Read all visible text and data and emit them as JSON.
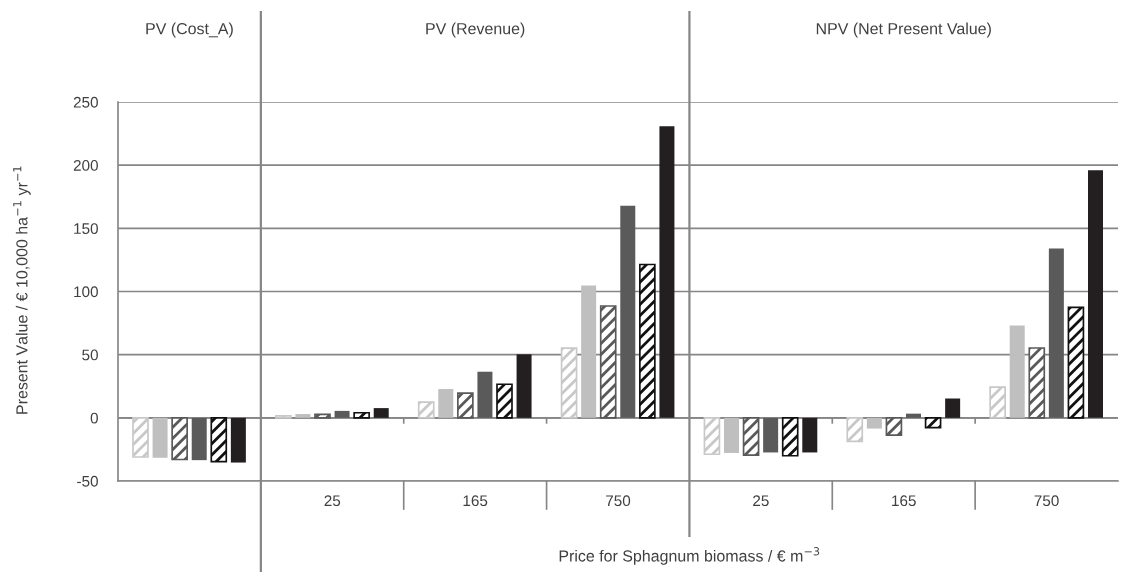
{
  "chart_data": {
    "type": "bar",
    "categories": [
      null,
      "25",
      "165",
      "750",
      "25",
      "165",
      "750"
    ],
    "xlabel": "Price for Sphagnum biomass / € m$^{−3}$",
    "ylabel": "Present Value / € 10,000 ha$^{−1}$ yr$^{−1}$",
    "annotations": [
      "PV (Cost_A)",
      "PV (Revenue)",
      "NPV (Net Present Value)"
    ],
    "ylim": [
      -50,
      250
    ],
    "yticks": [
      -50,
      0,
      50,
      100,
      150,
      200,
      250
    ],
    "grid": "y",
    "series": [
      {
        "color": "#c8c8c8",
        "values": [
          -31,
          1.6,
          12.4,
          55.2,
          -28.8,
          -18.6,
          24.3
        ]
      },
      {
        "color": "#bfbfbf",
        "values": [
          -31.6,
          3,
          22.8,
          104.7,
          -27.8,
          -8.5,
          73
        ]
      },
      {
        "color": "#595959",
        "values": [
          -33,
          2.7,
          19.5,
          88.5,
          -29.5,
          -13.7,
          55.3
        ]
      },
      {
        "color": "#5a5a5a",
        "values": [
          -33.5,
          5.5,
          36.5,
          167.9,
          -27.4,
          3.3,
          134.1
        ]
      },
      {
        "color": "#111111",
        "values": [
          -34.6,
          4,
          26.6,
          121.4,
          -30,
          -7.8,
          87.4
        ]
      },
      {
        "color": "#231f20",
        "values": [
          -35.4,
          7.7,
          50.3,
          230.8,
          -27.4,
          15.3,
          195.9
        ]
      }
    ]
  }
}
